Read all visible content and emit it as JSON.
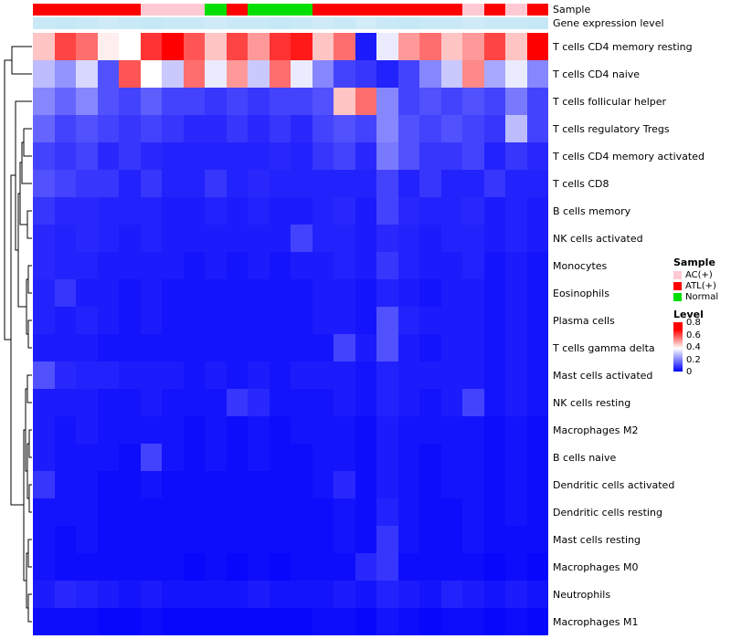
{
  "annotations": {
    "sample_label": "Sample",
    "gene_expr_label": "Gene expression level"
  },
  "legend": {
    "sample_title": "Sample",
    "sample_items": [
      {
        "label": "AC(+)",
        "color": "#FFC9D4"
      },
      {
        "label": "ATL(+)",
        "color": "#FF0000"
      },
      {
        "label": "Normal",
        "color": "#00DF00"
      }
    ],
    "level_title": "Level",
    "level_ticks": [
      "0.8",
      "0.6",
      "0.4",
      "0.2",
      "0"
    ]
  },
  "colors": {
    "heatmap_low": "#0000FC",
    "heatmap_mid": "#FFFFFF",
    "heatmap_high": "#FF0000",
    "sample_groups": {
      "AC(+)": "#FFC9D4",
      "ATL(+)": "#FF0000",
      "Normal": "#00DF00"
    },
    "gene_expr_low": "#E3F4FB",
    "gene_expr_high": "#8FD0EC"
  },
  "chart_data": {
    "type": "heatmap",
    "title": "",
    "value_range": [
      0,
      0.8
    ],
    "colormap": "blue-white-red",
    "legend_position": "right",
    "rows": [
      "T cells CD4 memory resting",
      "T cells CD4 naive",
      "T cells follicular helper",
      "T cells regulatory Tregs",
      "T cells CD4 memory activated",
      "T cells CD8",
      "B cells memory",
      "NK cells activated",
      "Monocytes",
      "Eosinophils",
      "Plasma cells",
      "T cells gamma delta",
      "Mast cells activated",
      "NK cells resting",
      "Macrophages M2",
      "B cells naive",
      "Dendritic cells activated",
      "Dendritic cells resting",
      "Mast cells resting",
      "Macrophages M0",
      "Neutrophils",
      "Macrophages M1"
    ],
    "column_groups": [
      "ATL(+)",
      "ATL(+)",
      "ATL(+)",
      "ATL(+)",
      "ATL(+)",
      "AC(+)",
      "AC(+)",
      "AC(+)",
      "Normal",
      "ATL(+)",
      "Normal",
      "Normal",
      "Normal",
      "ATL(+)",
      "ATL(+)",
      "ATL(+)",
      "ATL(+)",
      "ATL(+)",
      "ATL(+)",
      "ATL(+)",
      "AC(+)",
      "ATL(+)",
      "AC(+)",
      "ATL(+)"
    ],
    "gene_expression_level": [
      0.3,
      0.35,
      0.3,
      0.25,
      0.3,
      0.35,
      0.3,
      0.3,
      0.25,
      0.3,
      0.3,
      0.35,
      0.3,
      0.25,
      0.3,
      0.2,
      0.3,
      0.35,
      0.3,
      0.3,
      0.25,
      0.3,
      0.3,
      0.35
    ],
    "values": [
      [
        0.45,
        0.6,
        0.55,
        0.4,
        0.38,
        0.62,
        0.7,
        0.58,
        0.45,
        0.6,
        0.5,
        0.62,
        0.65,
        0.45,
        0.55,
        0.04,
        0.35,
        0.5,
        0.55,
        0.45,
        0.5,
        0.6,
        0.45,
        0.7
      ],
      [
        0.28,
        0.22,
        0.32,
        0.12,
        0.58,
        0.38,
        0.3,
        0.55,
        0.35,
        0.5,
        0.3,
        0.55,
        0.35,
        0.2,
        0.1,
        0.08,
        0.05,
        0.1,
        0.2,
        0.3,
        0.52,
        0.25,
        0.35,
        0.2
      ],
      [
        0.2,
        0.15,
        0.2,
        0.12,
        0.1,
        0.14,
        0.1,
        0.1,
        0.08,
        0.1,
        0.08,
        0.1,
        0.1,
        0.12,
        0.45,
        0.55,
        0.2,
        0.1,
        0.12,
        0.1,
        0.12,
        0.1,
        0.18,
        0.1
      ],
      [
        0.15,
        0.1,
        0.12,
        0.1,
        0.08,
        0.1,
        0.08,
        0.06,
        0.06,
        0.08,
        0.06,
        0.08,
        0.06,
        0.1,
        0.12,
        0.1,
        0.2,
        0.12,
        0.1,
        0.12,
        0.1,
        0.08,
        0.28,
        0.1
      ],
      [
        0.1,
        0.08,
        0.1,
        0.06,
        0.08,
        0.06,
        0.05,
        0.05,
        0.05,
        0.05,
        0.05,
        0.06,
        0.05,
        0.08,
        0.1,
        0.06,
        0.18,
        0.12,
        0.08,
        0.08,
        0.1,
        0.05,
        0.08,
        0.06
      ],
      [
        0.12,
        0.1,
        0.08,
        0.08,
        0.05,
        0.08,
        0.05,
        0.05,
        0.08,
        0.05,
        0.06,
        0.05,
        0.05,
        0.05,
        0.05,
        0.05,
        0.1,
        0.05,
        0.08,
        0.05,
        0.05,
        0.08,
        0.05,
        0.05
      ],
      [
        0.08,
        0.06,
        0.06,
        0.05,
        0.05,
        0.05,
        0.04,
        0.04,
        0.05,
        0.04,
        0.05,
        0.04,
        0.04,
        0.05,
        0.06,
        0.04,
        0.1,
        0.06,
        0.05,
        0.05,
        0.06,
        0.04,
        0.05,
        0.04
      ],
      [
        0.06,
        0.05,
        0.06,
        0.05,
        0.04,
        0.05,
        0.04,
        0.04,
        0.04,
        0.04,
        0.04,
        0.04,
        0.1,
        0.05,
        0.05,
        0.04,
        0.06,
        0.05,
        0.04,
        0.05,
        0.05,
        0.04,
        0.05,
        0.04
      ],
      [
        0.06,
        0.05,
        0.05,
        0.04,
        0.04,
        0.04,
        0.04,
        0.03,
        0.04,
        0.03,
        0.04,
        0.03,
        0.04,
        0.04,
        0.05,
        0.04,
        0.08,
        0.05,
        0.04,
        0.04,
        0.05,
        0.03,
        0.04,
        0.03
      ],
      [
        0.05,
        0.08,
        0.04,
        0.04,
        0.03,
        0.04,
        0.03,
        0.03,
        0.03,
        0.03,
        0.03,
        0.03,
        0.03,
        0.04,
        0.04,
        0.03,
        0.05,
        0.04,
        0.03,
        0.04,
        0.04,
        0.03,
        0.04,
        0.03
      ],
      [
        0.05,
        0.04,
        0.05,
        0.04,
        0.03,
        0.04,
        0.03,
        0.03,
        0.03,
        0.03,
        0.03,
        0.03,
        0.03,
        0.04,
        0.04,
        0.03,
        0.12,
        0.05,
        0.04,
        0.04,
        0.04,
        0.03,
        0.04,
        0.03
      ],
      [
        0.04,
        0.04,
        0.04,
        0.03,
        0.03,
        0.03,
        0.03,
        0.03,
        0.03,
        0.03,
        0.03,
        0.03,
        0.03,
        0.03,
        0.1,
        0.04,
        0.12,
        0.04,
        0.03,
        0.04,
        0.04,
        0.03,
        0.04,
        0.03
      ],
      [
        0.12,
        0.06,
        0.05,
        0.05,
        0.04,
        0.04,
        0.04,
        0.03,
        0.04,
        0.03,
        0.04,
        0.03,
        0.04,
        0.04,
        0.04,
        0.03,
        0.05,
        0.04,
        0.04,
        0.04,
        0.04,
        0.03,
        0.04,
        0.03
      ],
      [
        0.04,
        0.04,
        0.04,
        0.03,
        0.03,
        0.04,
        0.03,
        0.03,
        0.03,
        0.08,
        0.06,
        0.03,
        0.03,
        0.03,
        0.04,
        0.03,
        0.05,
        0.04,
        0.03,
        0.04,
        0.1,
        0.03,
        0.04,
        0.03
      ],
      [
        0.04,
        0.03,
        0.04,
        0.03,
        0.03,
        0.03,
        0.03,
        0.02,
        0.03,
        0.02,
        0.03,
        0.02,
        0.03,
        0.03,
        0.03,
        0.02,
        0.04,
        0.03,
        0.03,
        0.03,
        0.03,
        0.02,
        0.03,
        0.02
      ],
      [
        0.04,
        0.03,
        0.03,
        0.03,
        0.02,
        0.1,
        0.03,
        0.02,
        0.03,
        0.02,
        0.03,
        0.02,
        0.02,
        0.03,
        0.03,
        0.02,
        0.04,
        0.03,
        0.02,
        0.03,
        0.03,
        0.02,
        0.03,
        0.02
      ],
      [
        0.08,
        0.03,
        0.03,
        0.02,
        0.02,
        0.03,
        0.02,
        0.02,
        0.02,
        0.02,
        0.02,
        0.02,
        0.02,
        0.03,
        0.06,
        0.02,
        0.04,
        0.03,
        0.02,
        0.03,
        0.03,
        0.02,
        0.03,
        0.02
      ],
      [
        0.03,
        0.03,
        0.03,
        0.02,
        0.02,
        0.02,
        0.02,
        0.02,
        0.02,
        0.02,
        0.02,
        0.02,
        0.02,
        0.02,
        0.03,
        0.02,
        0.05,
        0.03,
        0.02,
        0.02,
        0.03,
        0.02,
        0.03,
        0.02
      ],
      [
        0.03,
        0.02,
        0.03,
        0.02,
        0.02,
        0.02,
        0.02,
        0.02,
        0.02,
        0.02,
        0.02,
        0.02,
        0.02,
        0.02,
        0.03,
        0.02,
        0.08,
        0.03,
        0.02,
        0.02,
        0.03,
        0.02,
        0.02,
        0.02
      ],
      [
        0.03,
        0.02,
        0.02,
        0.02,
        0.02,
        0.02,
        0.02,
        0.01,
        0.02,
        0.01,
        0.02,
        0.01,
        0.02,
        0.02,
        0.02,
        0.06,
        0.08,
        0.02,
        0.02,
        0.02,
        0.02,
        0.01,
        0.02,
        0.01
      ],
      [
        0.04,
        0.06,
        0.05,
        0.04,
        0.03,
        0.04,
        0.03,
        0.03,
        0.03,
        0.03,
        0.04,
        0.03,
        0.03,
        0.03,
        0.04,
        0.03,
        0.05,
        0.04,
        0.03,
        0.05,
        0.04,
        0.03,
        0.04,
        0.03
      ],
      [
        0.02,
        0.02,
        0.02,
        0.01,
        0.01,
        0.02,
        0.01,
        0.01,
        0.01,
        0.01,
        0.01,
        0.01,
        0.01,
        0.02,
        0.02,
        0.01,
        0.03,
        0.02,
        0.01,
        0.02,
        0.02,
        0.01,
        0.02,
        0.01
      ]
    ]
  }
}
